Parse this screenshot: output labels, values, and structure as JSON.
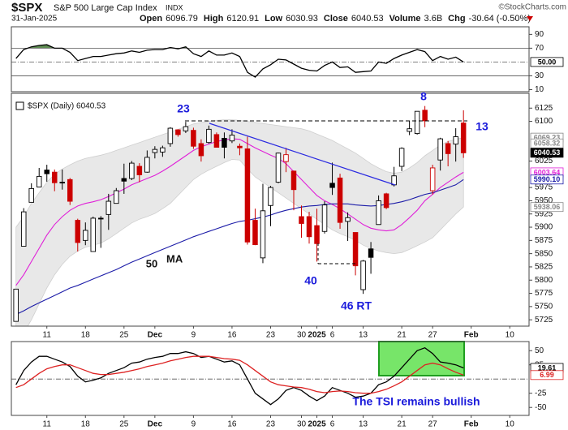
{
  "header": {
    "symbol": "$SPX",
    "name": "S&P 500 Large Cap Index",
    "exchange": "INDX",
    "date": "31-Jan-2025",
    "credit": "©StockCharts.com",
    "quote": [
      {
        "label": "Open",
        "value": "6096.79"
      },
      {
        "label": "High",
        "value": "6120.91"
      },
      {
        "label": "Low",
        "value": "6030.93"
      },
      {
        "label": "Close",
        "value": "6040.53"
      },
      {
        "label": "Volume",
        "value": "3.6B"
      },
      {
        "label": "Chg",
        "value": "-30.64 (-0.50%)"
      }
    ]
  },
  "chart_data": [
    {
      "type": "line",
      "xlim": [
        -0.6,
        66.5
      ],
      "ylim": [
        7,
        101
      ],
      "yticks": [
        90,
        70,
        30,
        10
      ],
      "levels": [
        {
          "value": 70,
          "style": "solid"
        },
        {
          "value": 50,
          "style": "dashdot"
        },
        {
          "value": 30,
          "style": "solid"
        }
      ],
      "fills": [
        {
          "level": 70,
          "side": "above",
          "color": "#5e8c52"
        },
        {
          "level": 30,
          "side": "below",
          "color": "#8c5a58"
        }
      ],
      "series": [
        {
          "color": "#000000",
          "values": [
            55,
            68,
            72,
            74,
            75,
            70,
            70,
            64,
            52,
            55,
            58,
            58,
            60,
            62,
            63,
            66,
            64,
            67,
            68,
            68,
            71,
            69,
            72,
            62,
            58,
            66,
            60,
            60,
            63,
            58,
            35,
            28,
            40,
            46,
            54,
            53,
            47,
            41,
            38,
            37,
            45,
            50,
            42,
            43,
            35,
            36,
            37,
            50,
            48,
            55,
            60,
            64,
            68,
            65,
            52,
            58,
            54,
            57,
            50
          ]
        }
      ],
      "tags": [
        {
          "value": 50,
          "label": "50.00",
          "color": "#000000",
          "filled": false
        }
      ]
    },
    {
      "type": "candlestick",
      "legend_label": "$SPX (Daily) 6040.53",
      "xlim": [
        -0.6,
        66.5
      ],
      "ylim": [
        5713,
        6153
      ],
      "yticks": [
        6125,
        6100,
        6025,
        5975,
        5950,
        5925,
        5900,
        5875,
        5850,
        5825,
        5800,
        5775,
        5750,
        5725
      ],
      "xticks": [
        {
          "value": 4,
          "label": "11"
        },
        {
          "value": 9,
          "label": "18"
        },
        {
          "value": 14,
          "label": "25"
        },
        {
          "value": 18,
          "label": "Dec"
        },
        {
          "value": 23,
          "label": "9"
        },
        {
          "value": 28,
          "label": "16"
        },
        {
          "value": 33,
          "label": "23"
        },
        {
          "value": 37,
          "label": "30"
        },
        {
          "value": 39,
          "label": "2025"
        },
        {
          "value": 41,
          "label": "6"
        },
        {
          "value": 45,
          "label": "13"
        },
        {
          "value": 50,
          "label": "21"
        },
        {
          "value": 54,
          "label": "27"
        },
        {
          "value": 59,
          "label": "Feb"
        },
        {
          "value": 64,
          "label": "10"
        }
      ],
      "up_color": "#000000",
      "down_color": "#cc0000",
      "open": [
        5722,
        5864,
        5947,
        5976,
        6008,
        6004,
        5985,
        5990,
        5913,
        5875,
        5854,
        5917,
        5924,
        5945,
        5992,
        5992,
        6015,
        6004,
        6041,
        6042,
        6058,
        6084,
        6082,
        6083,
        6058,
        6060,
        6075,
        6068,
        6063,
        6053,
        6048,
        5913,
        5842,
        5941,
        5985,
        6024,
        6006,
        5920,
        5920,
        5903,
        5892,
        5983,
        5993,
        5911,
        5890,
        5782,
        5859,
        5905,
        5963,
        5980,
        6015,
        6081,
        6077,
        6121,
        5969,
        6027,
        6058,
        6057,
        6096.79
      ],
      "high": [
        5783,
        5936,
        5983,
        6012,
        6018,
        6009,
        6009,
        5993,
        5916,
        5909,
        5920,
        5921,
        5963,
        5974,
        6020,
        6025,
        6021,
        6045,
        6053,
        6054,
        6089,
        6085,
        6099,
        6088,
        6066,
        6092,
        6079,
        6079,
        6085,
        6058,
        6071,
        5935,
        5982,
        5978,
        6041,
        6050,
        6007,
        5941,
        5929,
        5935,
        5949,
        6022,
        6001,
        5928,
        5890,
        5838,
        5872,
        5960,
        5965,
        6014,
        6051,
        6101,
        6119,
        6129,
        6018,
        6069,
        6063,
        6087,
        6120.91
      ],
      "low": [
        5722,
        5864,
        5947,
        5976,
        5986,
        5968,
        5971,
        5942,
        5854,
        5866,
        5854,
        5861,
        5895,
        5945,
        5963,
        5989,
        5985,
        6003,
        6030,
        6033,
        6052,
        6071,
        6078,
        6048,
        6024,
        6058,
        6051,
        6030,
        6059,
        6036,
        5867,
        5866,
        5832,
        5902,
        5983,
        6004,
        5932,
        5880,
        5869,
        5835,
        5888,
        5961,
        5897,
        5874,
        5809,
        5774,
        5812,
        5905,
        5934,
        5977,
        6006,
        6074,
        6075,
        6089,
        5962,
        6007,
        6015,
        6024,
        6030.93
      ],
      "close": [
        5783,
        5929,
        5973,
        5996,
        6001,
        5984,
        5985,
        5949,
        5871,
        5894,
        5917,
        5917,
        5949,
        5969,
        5987,
        6021,
        5999,
        6032,
        6047,
        6050,
        6087,
        6075,
        6090,
        6053,
        6035,
        6085,
        6051,
        6051,
        6074,
        6050,
        5872,
        5867,
        5931,
        5975,
        6040,
        6037,
        5971,
        5907,
        5882,
        5869,
        5942,
        5975,
        5909,
        5918,
        5827,
        5836,
        5843,
        5950,
        5937,
        5997,
        6049,
        6086,
        6119,
        6101,
        6012,
        6067,
        6039,
        6071,
        6040.53
      ],
      "band": {
        "color": "#e8e8e8",
        "edge": "#cfcfcf",
        "upper": [
          5900,
          5920,
          5945,
          5965,
          5985,
          6000,
          6010,
          6018,
          6025,
          6030,
          6033,
          6036,
          6040,
          6045,
          6050,
          6055,
          6060,
          6065,
          6070,
          6075,
          6080,
          6085,
          6090,
          6095,
          6098,
          6100,
          6102,
          6103,
          6103,
          6102,
          6100,
          6098,
          6096,
          6094,
          6092,
          6090,
          6088,
          6086,
          6082,
          6076,
          6070,
          6064,
          6056,
          6048,
          6040,
          6030,
          6020,
          6012,
          6005,
          6002,
          6004,
          6012,
          6022,
          6035,
          6045,
          6055,
          6062,
          6066,
          6069.23
        ],
        "lower": [
          5680,
          5700,
          5725,
          5755,
          5785,
          5810,
          5830,
          5845,
          5855,
          5862,
          5866,
          5870,
          5878,
          5888,
          5898,
          5908,
          5915,
          5920,
          5926,
          5935,
          5945,
          5960,
          5975,
          5990,
          6000,
          6008,
          6015,
          6022,
          6028,
          6027,
          6010,
          5995,
          5985,
          5975,
          5965,
          5955,
          5945,
          5935,
          5925,
          5915,
          5905,
          5895,
          5888,
          5882,
          5875,
          5866,
          5860,
          5855,
          5852,
          5850,
          5852,
          5858,
          5865,
          5872,
          5880,
          5895,
          5910,
          5925,
          5938.06
        ]
      },
      "lines": [
        {
          "color": "#e020d8",
          "values": [
            5790,
            5810,
            5835,
            5860,
            5885,
            5905,
            5920,
            5932,
            5940,
            5945,
            5948,
            5952,
            5958,
            5965,
            5972,
            5980,
            5986,
            5992,
            5998,
            6006,
            6015,
            6025,
            6035,
            6045,
            6052,
            6057,
            6062,
            6065,
            6067,
            6066,
            6058,
            6050,
            6043,
            6036,
            6030,
            6020,
            6005,
            5990,
            5975,
            5960,
            5950,
            5943,
            5935,
            5925,
            5915,
            5905,
            5898,
            5895,
            5893,
            5895,
            5905,
            5918,
            5932,
            5950,
            5962,
            5975,
            5985,
            5995,
            6003.64
          ]
        },
        {
          "color": "#1c1ca8",
          "values": [
            5735,
            5742,
            5750,
            5757,
            5764,
            5771,
            5778,
            5785,
            5790,
            5796,
            5802,
            5808,
            5814,
            5820,
            5827,
            5834,
            5840,
            5846,
            5852,
            5858,
            5864,
            5870,
            5876,
            5882,
            5887,
            5892,
            5897,
            5902,
            5907,
            5911,
            5913,
            5916,
            5919,
            5923,
            5928,
            5932,
            5935,
            5938,
            5940,
            5941,
            5943,
            5944,
            5944,
            5944,
            5942,
            5941,
            5940,
            5941,
            5943,
            5945,
            5948,
            5952,
            5957,
            5962,
            5965,
            5970,
            5975,
            5980,
            5990.1
          ]
        }
      ],
      "tags": [
        {
          "value": 6069.23,
          "label": "6069.23",
          "color": "#888888",
          "filled": false
        },
        {
          "value": 6058.32,
          "label": "6058.32",
          "color": "#888888",
          "filled": false
        },
        {
          "value": 6040.53,
          "label": "6040.53",
          "color": "#000000",
          "filled": true
        },
        {
          "value": 6003.64,
          "label": "6003.64",
          "color": "#e020d8",
          "filled": false
        },
        {
          "value": 5990.1,
          "label": "5990.10",
          "color": "#1c1ca8",
          "filled": false
        },
        {
          "value": 5938.06,
          "label": "5938.06",
          "color": "#888888",
          "filled": false
        }
      ],
      "annotations": [
        "23",
        "8",
        "13",
        "40",
        "46 RT",
        "50",
        "MA"
      ]
    },
    {
      "type": "line",
      "note": "The TSI remains bullish",
      "xlim": [
        -0.6,
        66.5
      ],
      "ylim": [
        -64,
        66
      ],
      "yticks": [
        50,
        25,
        -25,
        -50
      ],
      "xticks": [
        {
          "value": 4,
          "label": "11"
        },
        {
          "value": 9,
          "label": "18"
        },
        {
          "value": 14,
          "label": "25"
        },
        {
          "value": 18,
          "label": "Dec"
        },
        {
          "value": 23,
          "label": "9"
        },
        {
          "value": 28,
          "label": "16"
        },
        {
          "value": 33,
          "label": "23"
        },
        {
          "value": 37,
          "label": "30"
        },
        {
          "value": 39,
          "label": "2025"
        },
        {
          "value": 41,
          "label": "6"
        },
        {
          "value": 45,
          "label": "13"
        },
        {
          "value": 50,
          "label": "21"
        },
        {
          "value": 54,
          "label": "27"
        },
        {
          "value": 59,
          "label": "Feb"
        },
        {
          "value": 64,
          "label": "10"
        }
      ],
      "levels": [
        {
          "value": 0,
          "style": "dashdot"
        }
      ],
      "series": [
        {
          "color": "#000000",
          "values": [
            -10,
            15,
            30,
            40,
            40,
            35,
            30,
            22,
            5,
            -5,
            -2,
            2,
            10,
            15,
            20,
            28,
            30,
            35,
            38,
            40,
            45,
            45,
            48,
            45,
            38,
            40,
            35,
            30,
            32,
            25,
            0,
            -25,
            -35,
            -45,
            -35,
            -20,
            -15,
            -20,
            -30,
            -38,
            -30,
            -15,
            -20,
            -25,
            -32,
            -30,
            -25,
            -10,
            -5,
            5,
            20,
            35,
            50,
            55,
            45,
            30,
            28,
            25,
            19.61
          ]
        },
        {
          "color": "#dd2222",
          "values": [
            -15,
            -10,
            0,
            10,
            18,
            22,
            25,
            25,
            20,
            15,
            10,
            8,
            8,
            10,
            12,
            15,
            18,
            22,
            25,
            28,
            32,
            35,
            38,
            40,
            40,
            40,
            38,
            36,
            35,
            33,
            25,
            15,
            5,
            -5,
            -10,
            -12,
            -14,
            -15,
            -18,
            -22,
            -24,
            -22,
            -21,
            -22,
            -24,
            -25,
            -25,
            -22,
            -18,
            -12,
            -5,
            5,
            15,
            25,
            28,
            25,
            18,
            12,
            6.99
          ]
        }
      ],
      "tags": [
        {
          "value": 19.61,
          "label": "19.61",
          "color": "#000000",
          "filled": false
        },
        {
          "value": 6.99,
          "label": "6.99",
          "color": "#dd2222",
          "filled": false
        }
      ]
    }
  ]
}
